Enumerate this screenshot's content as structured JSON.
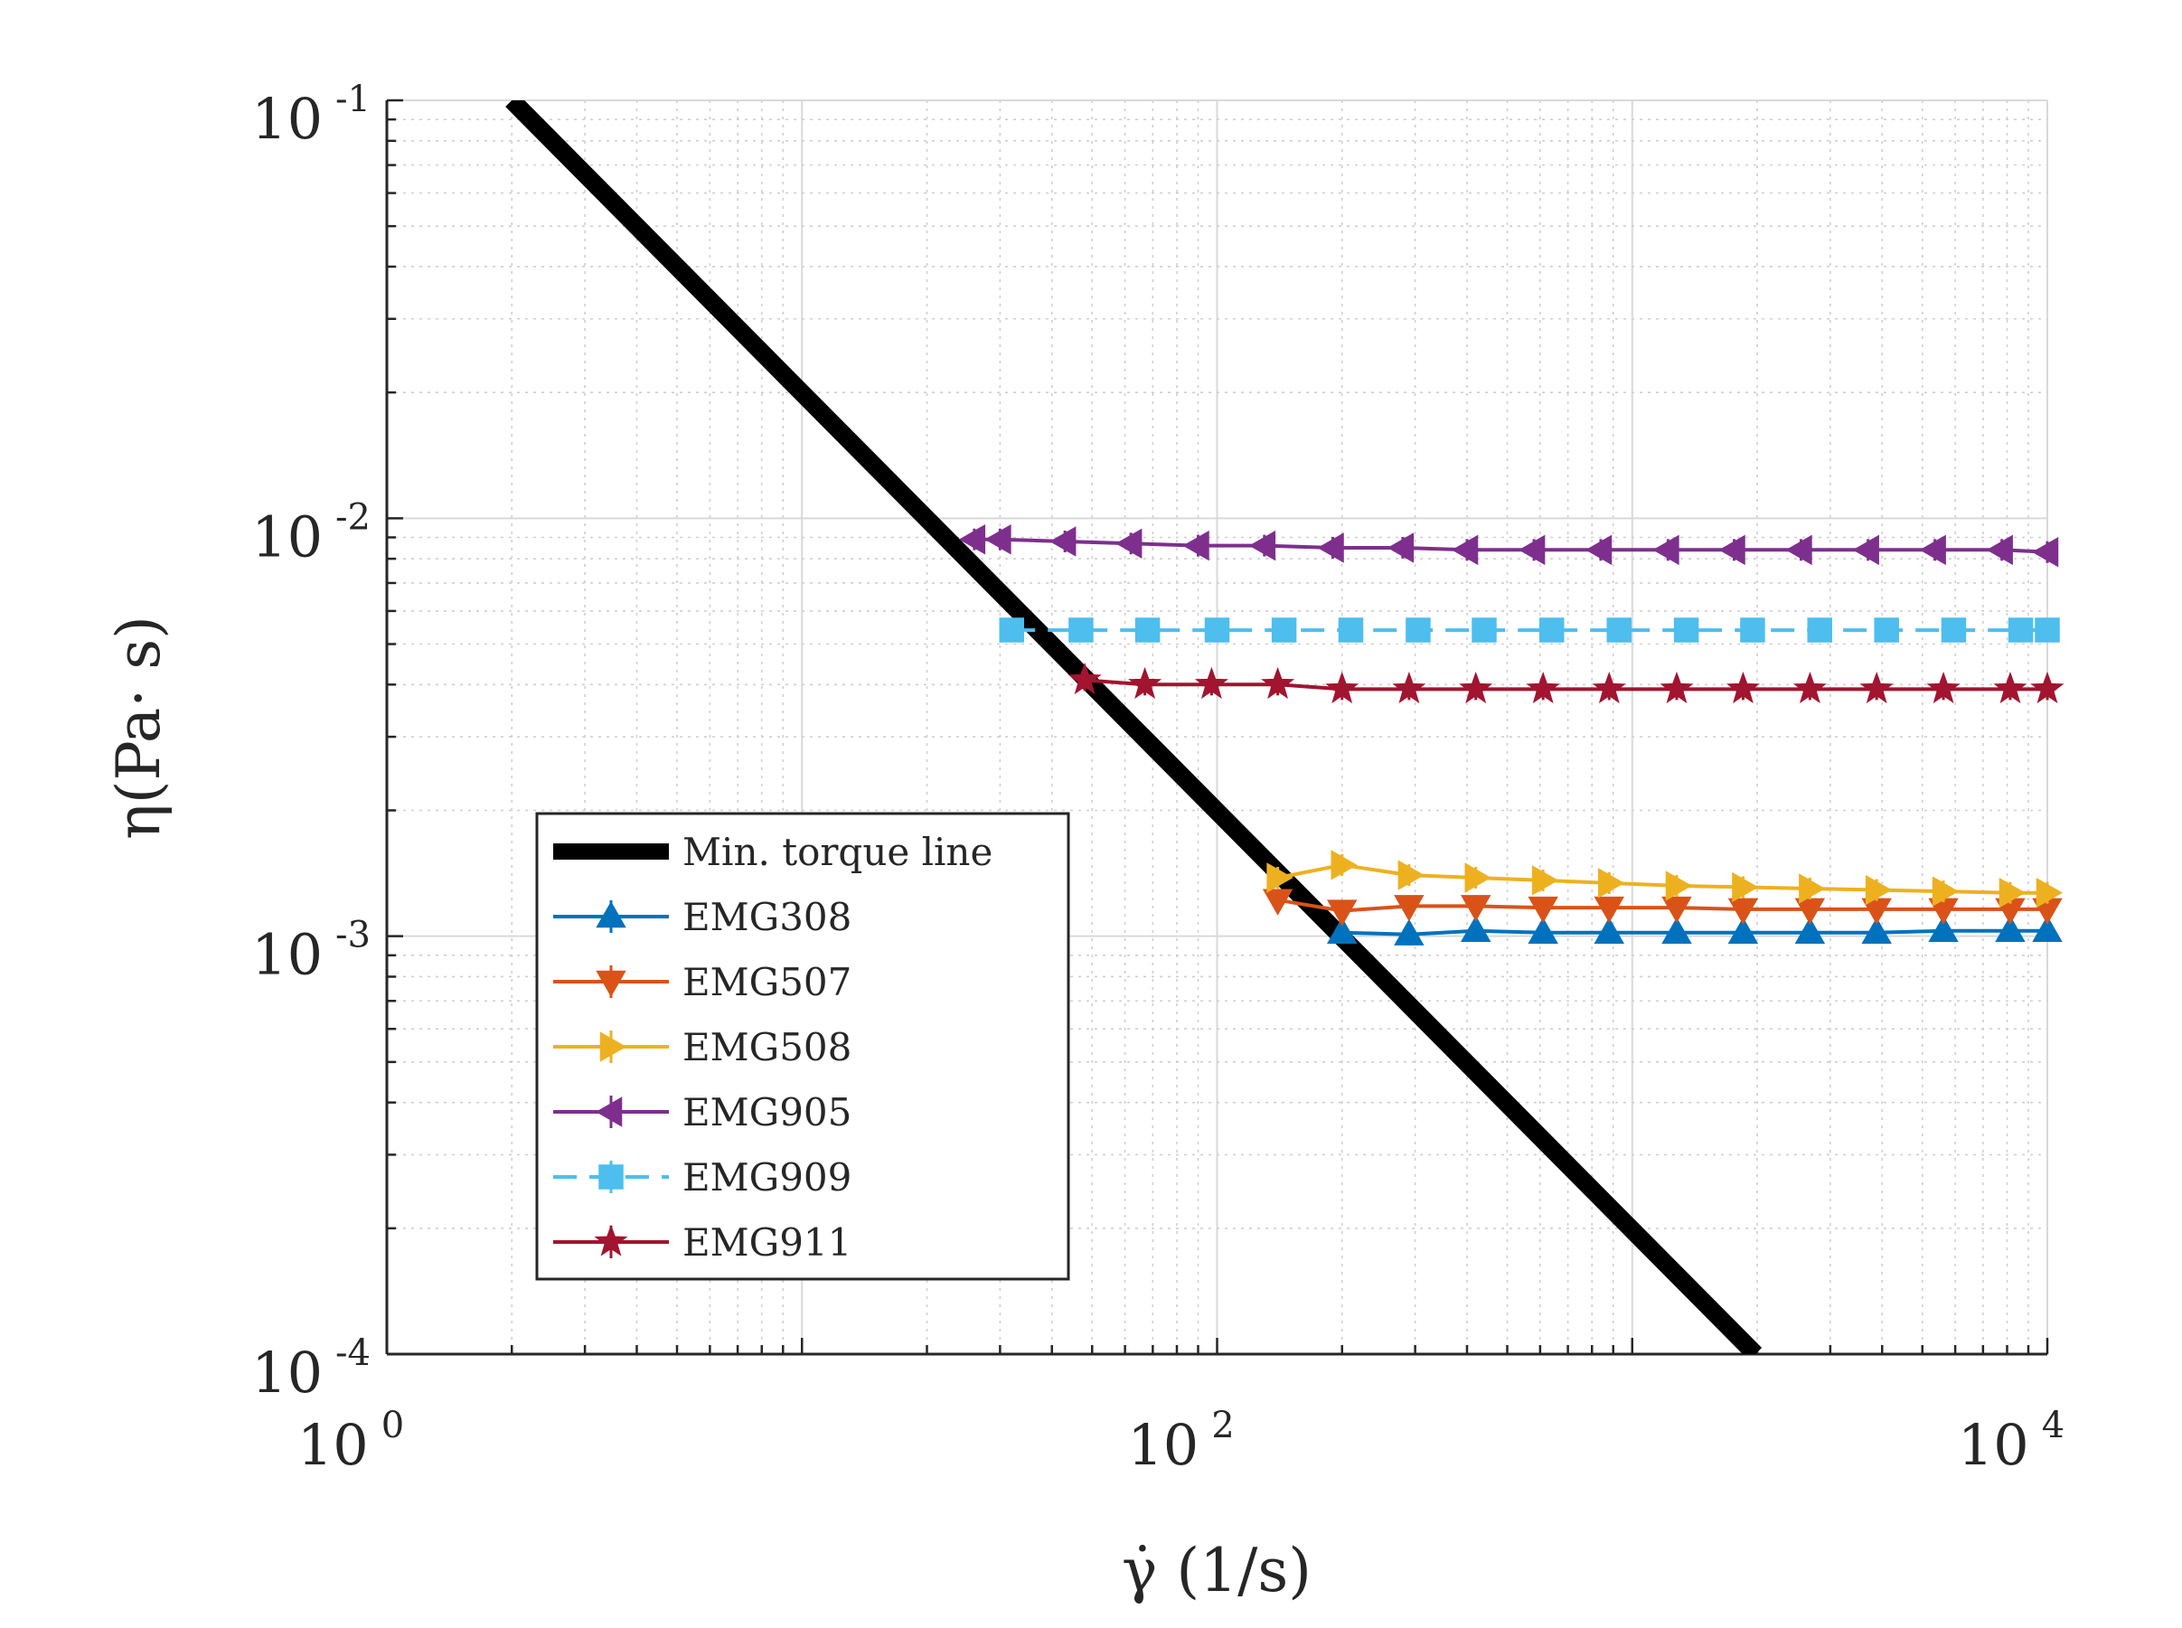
{
  "chart_data": {
    "type": "line",
    "scale": {
      "x": "log",
      "y": "log"
    },
    "xlim": [
      1,
      10000
    ],
    "ylim": [
      0.0001,
      0.1
    ],
    "xlabel": "γ̇ (1/s)",
    "ylabel": "η(Pa· s)",
    "x_ticks": [
      {
        "value": 1,
        "base": "10",
        "exp": "0"
      },
      {
        "value": 100,
        "base": "10",
        "exp": "2"
      },
      {
        "value": 10000,
        "base": "10",
        "exp": "4"
      }
    ],
    "y_ticks": [
      {
        "value": 0.1,
        "base": "10",
        "exp": "-1"
      },
      {
        "value": 0.01,
        "base": "10",
        "exp": "-2"
      },
      {
        "value": 0.001,
        "base": "10",
        "exp": "-3"
      },
      {
        "value": 0.0001,
        "base": "10",
        "exp": "-4"
      }
    ],
    "grid": true,
    "legend_position": "lower-left",
    "reference_line": {
      "name": "Min. torque line",
      "color": "#000000",
      "x": [
        2,
        1980
      ],
      "y": [
        0.1,
        0.0001
      ]
    },
    "series": [
      {
        "name": "EMG308",
        "color": "#0072BD",
        "marker": "triangle-up",
        "dashed": false,
        "x": [
          200,
          290,
          420,
          610,
          880,
          1280,
          1850,
          2680,
          3880,
          5620,
          8140,
          10000
        ],
        "y": [
          0.00102,
          0.00101,
          0.00103,
          0.00102,
          0.00102,
          0.00102,
          0.00102,
          0.00102,
          0.00102,
          0.00103,
          0.00103,
          0.00103
        ]
      },
      {
        "name": "EMG507",
        "color": "#D95319",
        "marker": "triangle-down",
        "dashed": false,
        "x": [
          140,
          200,
          290,
          420,
          610,
          880,
          1280,
          1850,
          2680,
          3880,
          5620,
          8140,
          10000
        ],
        "y": [
          0.00122,
          0.00115,
          0.00118,
          0.00118,
          0.00117,
          0.00117,
          0.00117,
          0.00116,
          0.00116,
          0.00116,
          0.00116,
          0.00116,
          0.00116
        ]
      },
      {
        "name": "EMG508",
        "color": "#EDB120",
        "marker": "triangle-right",
        "dashed": false,
        "x": [
          140,
          200,
          290,
          420,
          610,
          880,
          1280,
          1850,
          2680,
          3880,
          5620,
          8140,
          10000
        ],
        "y": [
          0.00138,
          0.00148,
          0.0014,
          0.00138,
          0.00136,
          0.00134,
          0.00132,
          0.00131,
          0.0013,
          0.00129,
          0.00128,
          0.00127,
          0.00127
        ]
      },
      {
        "name": "EMG905",
        "color": "#7E2F8E",
        "marker": "triangle-left",
        "dashed": false,
        "x": [
          26,
          30,
          43,
          62,
          90,
          130,
          190,
          280,
          400,
          580,
          840,
          1220,
          1760,
          2550,
          3700,
          5360,
          7770,
          10000
        ],
        "y": [
          0.0089,
          0.0089,
          0.0088,
          0.0087,
          0.0086,
          0.0086,
          0.0085,
          0.0085,
          0.0084,
          0.0084,
          0.0084,
          0.0084,
          0.0084,
          0.0084,
          0.0084,
          0.0084,
          0.0084,
          0.0083
        ]
      },
      {
        "name": "EMG909",
        "color": "#4DBEEE",
        "marker": "square",
        "dashed": true,
        "x": [
          32,
          47,
          68,
          100,
          145,
          210,
          305,
          440,
          640,
          930,
          1350,
          1950,
          2830,
          4100,
          5950,
          8630,
          10000
        ],
        "y": [
          0.0054,
          0.0054,
          0.0054,
          0.0054,
          0.0054,
          0.0054,
          0.0054,
          0.0054,
          0.0054,
          0.0054,
          0.0054,
          0.0054,
          0.0054,
          0.0054,
          0.0054,
          0.0054,
          0.0054
        ]
      },
      {
        "name": "EMG911",
        "color": "#A2142F",
        "marker": "star",
        "dashed": false,
        "x": [
          48,
          67,
          97,
          140,
          200,
          290,
          420,
          610,
          880,
          1280,
          1850,
          2680,
          3880,
          5620,
          8140,
          10000
        ],
        "y": [
          0.0041,
          0.004,
          0.004,
          0.004,
          0.0039,
          0.0039,
          0.0039,
          0.0039,
          0.0039,
          0.0039,
          0.0039,
          0.0039,
          0.0039,
          0.0039,
          0.0039,
          0.0039
        ]
      }
    ]
  }
}
